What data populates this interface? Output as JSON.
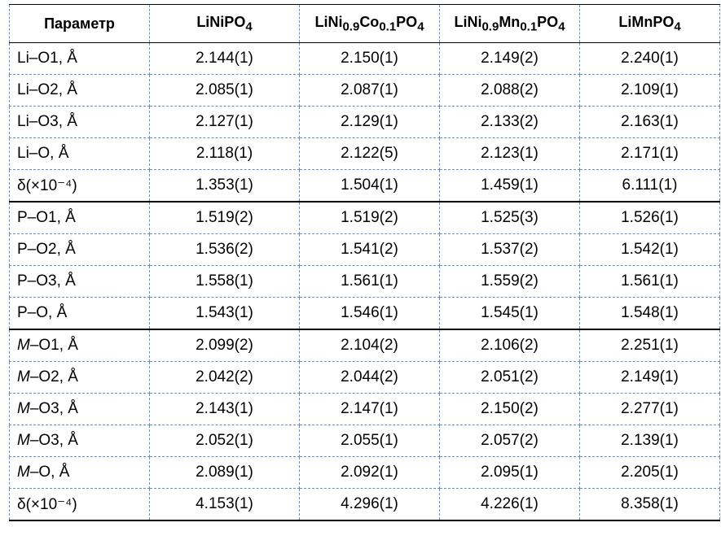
{
  "table": {
    "headers": [
      {
        "html": "Параметр"
      },
      {
        "html": "LiNiPO<sub>4</sub>"
      },
      {
        "html": "LiNi<sub>0.9</sub>Co<sub>0.1</sub>PO<sub>4</sub>"
      },
      {
        "html": "LiNi<sub>0.9</sub>Mn<sub>0.1</sub>PO<sub>4</sub>"
      },
      {
        "html": "LiMnPO<sub>4</sub>"
      }
    ],
    "rows": [
      {
        "param": "Li–O1, Å",
        "values": [
          "2.144(1)",
          "2.150(1)",
          "2.149(2)",
          "2.240(1)"
        ]
      },
      {
        "param": "Li–O2, Å",
        "values": [
          "2.085(1)",
          "2.087(1)",
          "2.088(2)",
          "2.109(1)"
        ]
      },
      {
        "param": "Li–O3, Å",
        "values": [
          "2.127(1)",
          "2.129(1)",
          "2.133(2)",
          "2.163(1)"
        ]
      },
      {
        "param": "Li–O, Å",
        "values": [
          "2.118(1)",
          "2.122(5)",
          "2.123(1)",
          "2.171(1)"
        ]
      },
      {
        "param": "δ(×10⁻⁴)",
        "values": [
          "1.353(1)",
          "1.504(1)",
          "1.459(1)",
          "6.111(1)"
        ]
      },
      {
        "param": "P–O1, Å",
        "values": [
          "1.519(2)",
          "1.519(2)",
          "1.525(3)",
          "1.526(1)"
        ],
        "group_start": true
      },
      {
        "param": "P–O2, Å",
        "values": [
          "1.536(2)",
          "1.541(2)",
          "1.537(2)",
          "1.542(1)"
        ]
      },
      {
        "param": "P–O3, Å",
        "values": [
          "1.558(1)",
          "1.561(1)",
          "1.559(2)",
          "1.561(1)"
        ]
      },
      {
        "param": "P–O, Å",
        "values": [
          "1.543(1)",
          "1.546(1)",
          "1.545(1)",
          "1.548(1)"
        ]
      },
      {
        "param": "M–O1, Å",
        "italic_prefix": "M",
        "values": [
          "2.099(2)",
          "2.104(2)",
          "2.106(2)",
          "2.251(1)"
        ],
        "group_start": true
      },
      {
        "param": "M–O2, Å",
        "italic_prefix": "M",
        "values": [
          "2.042(2)",
          "2.044(2)",
          "2.051(2)",
          "2.149(1)"
        ]
      },
      {
        "param": "M–O3, Å",
        "italic_prefix": "M",
        "values": [
          "2.143(1)",
          "2.147(1)",
          "2.150(2)",
          "2.277(1)"
        ]
      },
      {
        "param": "M–O3, Å",
        "italic_prefix": "M",
        "values": [
          "2.052(1)",
          "2.055(1)",
          "2.057(2)",
          "2.139(1)"
        ]
      },
      {
        "param": "M–O, Å",
        "italic_prefix": "M",
        "values": [
          "2.089(1)",
          "2.092(1)",
          "2.095(1)",
          "2.205(1)"
        ]
      },
      {
        "param": "δ(×10⁻⁴)",
        "values": [
          "4.153(1)",
          "4.296(1)",
          "4.226(1)",
          "8.358(1)"
        ]
      }
    ]
  }
}
